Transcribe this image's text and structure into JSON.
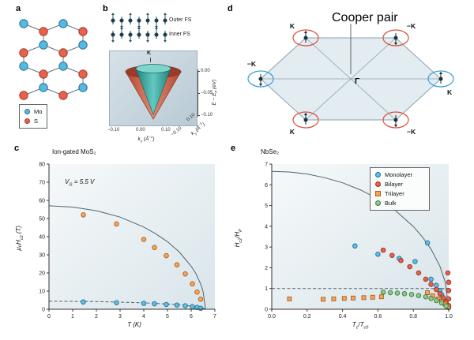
{
  "colors": {
    "mo_blue": "#56b9e4",
    "s_red": "#e8614c",
    "bond": "#5f7884",
    "outer_cone_dark": "#b3452f",
    "outer_cone_light": "#e08a71",
    "inner_cone_dark": "#1f837c",
    "inner_cone_light": "#63c8bf",
    "curve": "#4f6570",
    "ellipse_red": "#d8503c",
    "ellipse_blue": "#35a0d8",
    "hex_fill": "#e3ecf1",
    "hex_edge": "#8fa0ac",
    "plot_bg_from": "#f6f9fa",
    "plot_bg_to": "#d9e5ea",
    "spin": "#23506b"
  },
  "panel_a": {
    "label": "a",
    "legend": [
      {
        "label": "Mo",
        "color": "#56b9e4",
        "edge": "#2e6f8e"
      },
      {
        "label": "S",
        "color": "#e8614c",
        "edge": "#a33c2a"
      }
    ]
  },
  "panel_b": {
    "label": "b",
    "spin_rows": [
      {
        "label": "Outer FS"
      },
      {
        "label": "Inner FS"
      }
    ],
    "k_point": "K",
    "energy_axis_label": "E − E_{F} (eV)",
    "energy_ticks": [
      "0.00",
      "−0.05",
      "−0.10"
    ],
    "kx_axis_label": "k_{x} (Å^{−1})",
    "kx_ticks": [
      "−0.10",
      "0.00",
      "0.10"
    ],
    "ky_axis_label": "k_{y} (Å^{−1})",
    "ky_ticks": [
      "0.10",
      "−0.10"
    ]
  },
  "panel_d": {
    "label": "d",
    "cooper_pair_label": "Cooper pair",
    "gamma_label": "Γ",
    "vertices": [
      {
        "pos": "top-left",
        "label": "K",
        "ellipse": "red",
        "arrow": "up"
      },
      {
        "pos": "top-right",
        "label": "−K",
        "ellipse": "red",
        "arrow": "down"
      },
      {
        "pos": "left",
        "label": "−K",
        "ellipse": "blue",
        "arrow": "down"
      },
      {
        "pos": "right",
        "label": "K",
        "ellipse": "blue",
        "arrow": "up"
      },
      {
        "pos": "bottom-left",
        "label": "K",
        "ellipse": "red",
        "arrow": "up"
      },
      {
        "pos": "bottom-right",
        "label": "−K",
        "ellipse": "red",
        "arrow": "down"
      }
    ]
  },
  "chart_data": [
    {
      "id": "chart-c",
      "type": "scatter",
      "panel_label": "c",
      "title": "Ion-gated MoS₂",
      "annotation": "V_{G} = 5.5 V",
      "xlabel": "T (K)",
      "ylabel": "μ₀H_{c2} (T)",
      "xlim": [
        0,
        7
      ],
      "ylim": [
        0,
        80
      ],
      "xticks": [
        "0",
        "1",
        "2",
        "3",
        "4",
        "5",
        "6",
        "7"
      ],
      "yticks": [
        "0",
        "10",
        "20",
        "30",
        "40",
        "50",
        "60",
        "70",
        "80"
      ],
      "grid": false,
      "series": [
        {
          "name": "in-plane-field-orange-circles",
          "marker": "circle",
          "color": "#f3a45f",
          "edge": "#b06018",
          "points": [
            [
              1.45,
              52
            ],
            [
              2.85,
              47
            ],
            [
              4.0,
              38.5
            ],
            [
              4.45,
              34
            ],
            [
              4.95,
              29.5
            ],
            [
              5.4,
              24.5
            ],
            [
              5.75,
              19.5
            ],
            [
              6.05,
              14
            ],
            [
              6.25,
              9.5
            ],
            [
              6.4,
              5.5
            ]
          ]
        },
        {
          "name": "out-of-plane-field-blue-circles",
          "marker": "circle",
          "color": "#62bfe4",
          "edge": "#1f6f99",
          "points": [
            [
              1.45,
              4.0
            ],
            [
              2.85,
              3.6
            ],
            [
              4.0,
              3.2
            ],
            [
              4.45,
              3.0
            ],
            [
              4.95,
              2.6
            ],
            [
              5.4,
              2.3
            ],
            [
              5.75,
              1.9
            ],
            [
              6.05,
              1.4
            ],
            [
              6.25,
              1.0
            ],
            [
              6.4,
              0.5
            ]
          ]
        }
      ],
      "curves": [
        {
          "style": "solid",
          "points": [
            [
              0,
              57
            ],
            [
              1,
              56.3
            ],
            [
              2,
              54.3
            ],
            [
              3,
              50.8
            ],
            [
              4,
              45.3
            ],
            [
              4.5,
              41.6
            ],
            [
              5,
              37.2
            ],
            [
              5.5,
              31.5
            ],
            [
              6,
              23.7
            ],
            [
              6.2,
              19.6
            ],
            [
              6.4,
              13.9
            ],
            [
              6.5,
              9.9
            ],
            [
              6.6,
              0.3
            ]
          ]
        },
        {
          "style": "dashed",
          "points": [
            [
              0,
              4.4
            ],
            [
              1,
              4.35
            ],
            [
              2,
              4.2
            ],
            [
              3,
              3.9
            ],
            [
              4,
              3.5
            ],
            [
              5,
              2.9
            ],
            [
              5.5,
              2.4
            ],
            [
              6,
              1.8
            ],
            [
              6.4,
              1.1
            ],
            [
              6.6,
              0.2
            ]
          ]
        }
      ]
    },
    {
      "id": "chart-e",
      "type": "scatter",
      "panel_label": "e",
      "title": "NbSe₂",
      "xlabel": "T_{c}/T_{c0}",
      "ylabel": "H_{c2}/H_{P}",
      "xlim": [
        0,
        1.0
      ],
      "ylim": [
        0,
        7
      ],
      "xticks": [
        "0.0",
        "0.2",
        "0.4",
        "0.6",
        "0.8",
        "1.0"
      ],
      "yticks": [
        "0",
        "1",
        "2",
        "3",
        "4",
        "5",
        "6",
        "7"
      ],
      "grid": false,
      "legend_position": "top-right",
      "legend": [
        {
          "label": "Monolayer",
          "marker": "circle",
          "color": "#62bfe4",
          "edge": "#1f6f99"
        },
        {
          "label": "Bilayer",
          "marker": "circle",
          "color": "#e8614c",
          "edge": "#9c3222"
        },
        {
          "label": "Trilayer",
          "marker": "square",
          "color": "#f3a45f",
          "edge": "#b06018"
        },
        {
          "label": "Bulk",
          "marker": "circle",
          "color": "#8cc78c",
          "edge": "#3f7d3f"
        }
      ],
      "series": [
        {
          "name": "Monolayer",
          "marker": "circle",
          "color": "#62bfe4",
          "edge": "#1f6f99",
          "points": [
            [
              0.47,
              3.05
            ],
            [
              0.6,
              2.65
            ],
            [
              0.72,
              2.45
            ],
            [
              0.81,
              2.3
            ],
            [
              0.88,
              3.2
            ],
            [
              0.9,
              1.45
            ],
            [
              0.93,
              1.15
            ],
            [
              0.95,
              0.9
            ],
            [
              0.96,
              0.7
            ],
            [
              0.97,
              0.5
            ],
            [
              0.98,
              0.35
            ],
            [
              0.99,
              0.2
            ],
            [
              1.0,
              0.08
            ]
          ]
        },
        {
          "name": "Bilayer",
          "marker": "circle",
          "color": "#e8614c",
          "edge": "#9c3222",
          "points": [
            [
              0.63,
              2.85
            ],
            [
              0.68,
              2.6
            ],
            [
              0.73,
              2.35
            ],
            [
              0.78,
              2.05
            ],
            [
              0.83,
              1.75
            ],
            [
              0.87,
              1.45
            ],
            [
              0.9,
              1.2
            ],
            [
              0.93,
              0.95
            ],
            [
              0.95,
              0.75
            ],
            [
              0.97,
              0.55
            ],
            [
              0.985,
              0.35
            ],
            [
              0.995,
              1.75
            ],
            [
              1.0,
              1.3
            ],
            [
              1.0,
              0.9
            ],
            [
              1.0,
              0.5
            ],
            [
              1.0,
              0.18
            ]
          ]
        },
        {
          "name": "Trilayer",
          "marker": "square",
          "color": "#f3a45f",
          "edge": "#b06018",
          "points": [
            [
              0.1,
              0.5
            ],
            [
              0.29,
              0.48
            ],
            [
              0.35,
              0.5
            ],
            [
              0.41,
              0.52
            ],
            [
              0.46,
              0.54
            ],
            [
              0.52,
              0.56
            ],
            [
              0.57,
              0.58
            ],
            [
              0.62,
              0.6
            ],
            [
              0.88,
              0.8
            ],
            [
              0.91,
              0.65
            ],
            [
              0.94,
              0.5
            ],
            [
              0.96,
              0.38
            ],
            [
              0.98,
              0.25
            ],
            [
              0.995,
              0.12
            ]
          ]
        },
        {
          "name": "Bulk",
          "marker": "circle",
          "color": "#8cc78c",
          "edge": "#3f7d3f",
          "points": [
            [
              0.63,
              0.82
            ],
            [
              0.67,
              0.8
            ],
            [
              0.71,
              0.78
            ],
            [
              0.75,
              0.75
            ],
            [
              0.79,
              0.71
            ],
            [
              0.83,
              0.66
            ],
            [
              0.87,
              0.6
            ],
            [
              0.9,
              0.52
            ],
            [
              0.93,
              0.42
            ],
            [
              0.96,
              0.3
            ],
            [
              0.985,
              0.16
            ]
          ]
        }
      ],
      "curves": [
        {
          "style": "solid",
          "points": [
            [
              0,
              6.65
            ],
            [
              0.1,
              6.62
            ],
            [
              0.2,
              6.52
            ],
            [
              0.3,
              6.34
            ],
            [
              0.4,
              6.1
            ],
            [
              0.5,
              5.76
            ],
            [
              0.6,
              5.32
            ],
            [
              0.7,
              4.75
            ],
            [
              0.8,
              3.99
            ],
            [
              0.85,
              3.5
            ],
            [
              0.9,
              2.9
            ],
            [
              0.95,
              2.08
            ],
            [
              0.98,
              1.32
            ],
            [
              1.0,
              0.05
            ]
          ]
        },
        {
          "style": "dashed",
          "points": [
            [
              0,
              1
            ],
            [
              1.0,
              1
            ]
          ]
        }
      ]
    }
  ]
}
